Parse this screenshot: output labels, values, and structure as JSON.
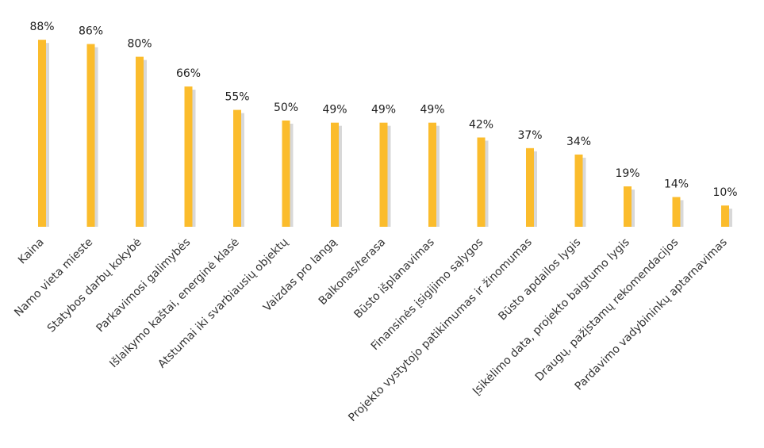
{
  "chart_data": {
    "type": "bar",
    "categories": [
      "Kaina",
      "Namo vieta mieste",
      "Statybos darbų kokybė",
      "Parkavimosi galimybės",
      "Išlaikymo kaštai, energinė klasė",
      "Atstumai iki svarbiausių objektų",
      "Vaizdas pro langą",
      "Balkonas/terasa",
      "Būsto išplanavimas",
      "Finansinės įsigijimo sąlygos",
      "Projekto vystytojo patikimumas ir žinomumas",
      "Būsto apdailos lygis",
      "Įsikėlimo data, projekto baigtumo lygis",
      "Draugų, pažįstamų rekomendacijos",
      "Pardavimo vadybininkų aptarnavimas"
    ],
    "values": [
      88,
      86,
      80,
      66,
      55,
      50,
      49,
      49,
      49,
      42,
      37,
      34,
      19,
      14,
      10
    ],
    "value_labels": [
      "88%",
      "86%",
      "80%",
      "66%",
      "55%",
      "50%",
      "49%",
      "49%",
      "49%",
      "42%",
      "37%",
      "34%",
      "19%",
      "14%",
      "10%"
    ],
    "unit": "%",
    "title": "",
    "xlabel": "",
    "ylabel": "",
    "ylim": [
      0,
      100
    ],
    "grid": false,
    "legend": "none",
    "colors": {
      "bar": "#FBBC2C",
      "bar_shadow": "#B8B8B8",
      "text": "#222222"
    }
  }
}
